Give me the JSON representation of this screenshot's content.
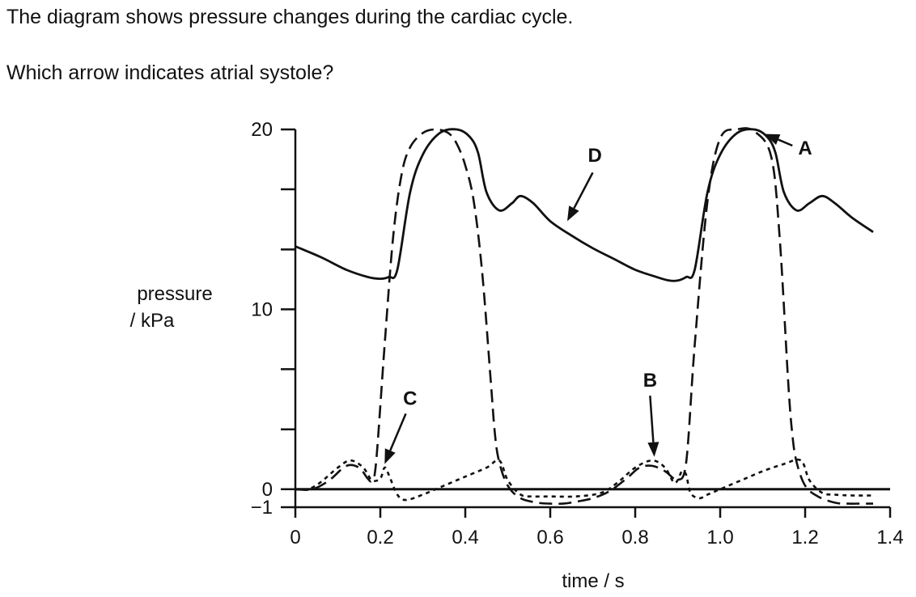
{
  "question": {
    "line1": "The diagram shows pressure changes during the cardiac cycle.",
    "line2": "Which arrow indicates atrial systole?"
  },
  "chart_data": {
    "type": "line",
    "xlabel": "time / s",
    "ylabel_line1": "pressure",
    "ylabel_line2": "/ kPa",
    "xlim": [
      0,
      1.4
    ],
    "ylim": [
      -1,
      20
    ],
    "x_ticks": [
      0,
      0.2,
      0.4,
      0.6,
      0.8,
      1.0,
      1.2,
      1.4
    ],
    "x_tick_labels": [
      "0",
      "0.2",
      "0.4",
      "0.6",
      "0.8",
      "1.0",
      "1.2",
      "1.4"
    ],
    "y_ticks": [
      -1,
      0,
      3.33,
      6.67,
      10,
      13.33,
      16.67,
      20
    ],
    "y_tick_labels": [
      "−1",
      "0",
      "",
      "",
      "10",
      "",
      "",
      "20"
    ],
    "grid": false,
    "series": [
      {
        "style": "solid",
        "x": [
          0,
          0.06,
          0.12,
          0.17,
          0.2,
          0.22,
          0.24,
          0.27,
          0.3,
          0.34,
          0.38,
          0.41,
          0.43,
          0.45,
          0.48,
          0.51,
          0.53,
          0.56,
          0.6,
          0.65,
          0.7,
          0.75,
          0.8,
          0.85,
          0.88,
          0.9,
          0.92,
          0.94,
          0.97,
          1.0,
          1.04,
          1.08,
          1.11,
          1.13,
          1.15,
          1.18,
          1.21,
          1.24,
          1.27,
          1.31,
          1.36,
          1.41
        ],
        "values": [
          13.5,
          12.9,
          12.2,
          11.8,
          11.7,
          11.8,
          12.2,
          16.5,
          18.6,
          19.8,
          20.0,
          19.6,
          18.7,
          16.5,
          15.5,
          15.9,
          16.3,
          15.9,
          14.9,
          14.1,
          13.4,
          12.8,
          12.2,
          11.8,
          11.6,
          11.6,
          11.8,
          12.2,
          16.5,
          18.6,
          19.8,
          20.0,
          19.6,
          18.7,
          16.5,
          15.5,
          15.9,
          16.3,
          15.9,
          15.1,
          14.3,
          13.6
        ]
      },
      {
        "style": "dashed",
        "x": [
          0,
          0.04,
          0.08,
          0.12,
          0.15,
          0.17,
          0.18,
          0.19,
          0.21,
          0.23,
          0.25,
          0.27,
          0.3,
          0.33,
          0.36,
          0.38,
          0.4,
          0.42,
          0.44,
          0.46,
          0.47,
          0.48,
          0.5,
          0.53,
          0.57,
          0.6,
          0.63,
          0.66,
          0.7,
          0.74,
          0.78,
          0.81,
          0.84,
          0.87,
          0.89,
          0.9,
          0.92,
          0.94,
          0.97,
          1.0,
          1.04,
          1.08,
          1.12,
          1.14,
          1.16,
          1.17,
          1.18,
          1.2,
          1.23,
          1.27,
          1.3,
          1.33,
          1.36,
          1.41
        ],
        "values": [
          0,
          0,
          0.5,
          1.3,
          1.2,
          0.6,
          0.5,
          1.5,
          8,
          14,
          17.5,
          19,
          19.8,
          20.0,
          19.8,
          19.2,
          18,
          16,
          12,
          6,
          3,
          1.5,
          0.2,
          -0.5,
          -0.75,
          -0.8,
          -0.8,
          -0.7,
          -0.5,
          -0.1,
          0.6,
          1.2,
          1.3,
          1.0,
          0.6,
          0.5,
          1.5,
          8,
          16,
          19.5,
          20.0,
          19.9,
          18.5,
          14,
          6,
          3,
          1.5,
          0.2,
          -0.4,
          -0.75,
          -0.8,
          -0.8,
          -0.8,
          -0.8
        ]
      },
      {
        "style": "dotted",
        "x": [
          0,
          0.03,
          0.06,
          0.1,
          0.13,
          0.16,
          0.18,
          0.2,
          0.21,
          0.22,
          0.24,
          0.26,
          0.3,
          0.35,
          0.4,
          0.45,
          0.48,
          0.5,
          0.53,
          0.56,
          0.6,
          0.66,
          0.72,
          0.76,
          0.8,
          0.84,
          0.87,
          0.89,
          0.9,
          0.91,
          0.92,
          0.93,
          0.95,
          0.97,
          1.0,
          1.05,
          1.1,
          1.15,
          1.19,
          1.21,
          1.24,
          1.27,
          1.31,
          1.36,
          1.41
        ],
        "values": [
          0,
          0,
          0.4,
          1.2,
          1.6,
          1.2,
          0.5,
          0.6,
          1.2,
          0.8,
          -0.3,
          -0.6,
          -0.3,
          0.2,
          0.7,
          1.2,
          1.6,
          0.5,
          -0.3,
          -0.4,
          -0.4,
          -0.4,
          -0.2,
          0.4,
          1.2,
          1.6,
          1.2,
          0.4,
          0.5,
          1.0,
          0.8,
          -0.2,
          -0.5,
          -0.3,
          0.0,
          0.5,
          1.0,
          1.4,
          1.6,
          0.5,
          -0.2,
          -0.3,
          -0.35,
          -0.35,
          -0.35
        ]
      }
    ],
    "annotations": [
      {
        "label": "A",
        "text_at": [
          1.2,
          19.0
        ],
        "head_at": [
          1.105,
          19.75
        ],
        "tail_at": [
          1.17,
          19.1
        ]
      },
      {
        "label": "B",
        "text_at": [
          0.835,
          6.1
        ],
        "head_at": [
          0.845,
          1.8
        ],
        "tail_at": [
          0.835,
          5.2
        ]
      },
      {
        "label": "C",
        "text_at": [
          0.27,
          5.1
        ],
        "head_at": [
          0.21,
          1.4
        ],
        "tail_at": [
          0.26,
          4.2
        ]
      },
      {
        "label": "D",
        "text_at": [
          0.705,
          18.6
        ],
        "head_at": [
          0.64,
          14.9
        ],
        "tail_at": [
          0.7,
          17.6
        ]
      }
    ]
  }
}
